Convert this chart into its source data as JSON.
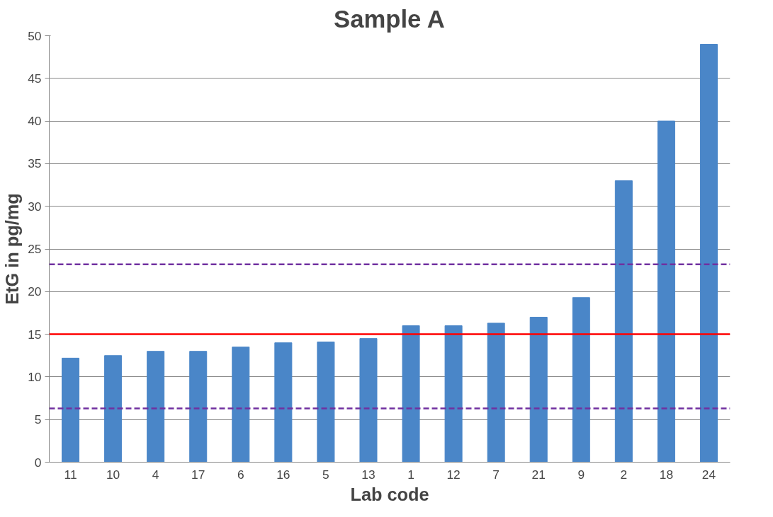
{
  "chart_data": {
    "type": "bar",
    "title": "Sample A",
    "xlabel": "Lab code",
    "ylabel": "EtG in pg/mg",
    "categories": [
      "11",
      "10",
      "4",
      "17",
      "6",
      "16",
      "5",
      "13",
      "1",
      "12",
      "7",
      "21",
      "9",
      "2",
      "18",
      "24"
    ],
    "values": [
      12.2,
      12.5,
      13.0,
      13.0,
      13.5,
      14.0,
      14.1,
      14.5,
      16.0,
      16.0,
      16.3,
      17.0,
      19.3,
      33.0,
      40.0,
      49.0
    ],
    "color": "#4a86c8",
    "ylim": [
      0,
      50
    ],
    "yticks": [
      0,
      5,
      10,
      15,
      20,
      25,
      30,
      35,
      40,
      45,
      50
    ],
    "grid": "y",
    "ref_lines": [
      {
        "axis": "y",
        "value": 15,
        "color": "#ff0000",
        "line_style": "solid"
      },
      {
        "axis": "y",
        "value": 23.2,
        "color": "#7030a0",
        "line_style": "dashed"
      },
      {
        "axis": "y",
        "value": 6.3,
        "color": "#7030a0",
        "line_style": "dashed"
      }
    ]
  }
}
